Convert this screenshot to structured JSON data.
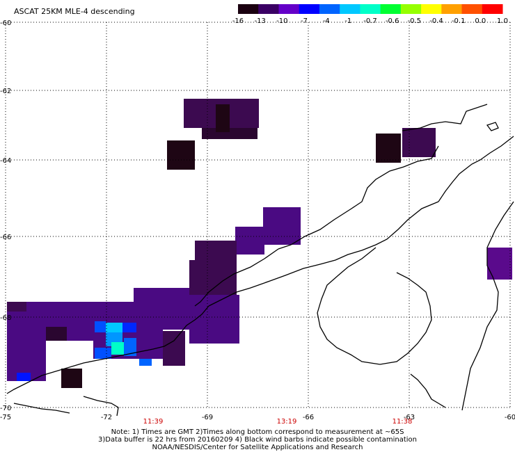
{
  "title": "ASCAT 25KM MLE-4 descending",
  "colorbar": {
    "ticks": [
      "-16",
      "-13",
      "-10",
      "-7",
      "-4",
      "-1",
      "-0.7",
      "-0.6",
      "-0.5",
      "-0.4",
      "-0.1",
      "0.0",
      "1.0"
    ],
    "colors": [
      "#1a0010",
      "#3a0064",
      "#6400c8",
      "#0000ff",
      "#0064ff",
      "#00c8ff",
      "#00ffc8",
      "#00ff32",
      "#96ff00",
      "#ffff00",
      "#ffa000",
      "#ff5000",
      "#ff0000"
    ]
  },
  "axes": {
    "lon_labels": [
      "-75",
      "-72",
      "-69",
      "-66",
      "-63",
      "-60"
    ],
    "lat_labels": [
      "-60",
      "-62",
      "-64",
      "-66",
      "-68",
      "-70"
    ]
  },
  "time_labels": [
    "11:39",
    "13:19",
    "11:38"
  ],
  "notes": {
    "line1": "Note: 1) Times are GMT 2)Times along bottom correspond to measurement at ~65S",
    "line2": "3)Data buffer is 22 hrs from 20160209 4) Black wind barbs indicate possible contamination",
    "line3": "NOAA/NESDIS/Center for Satellite Applications and Research"
  },
  "colors": {
    "deep_purple": "#3c0a50",
    "dark_plum": "#1e0614",
    "violet": "#5a0a8c",
    "indigo": "#4a0aa0",
    "blue": "#0014ff",
    "cyan": "#00c8ff",
    "teal": "#00ffc8",
    "coast": "#000000",
    "grid": "#000000",
    "time_red": "#cc0000"
  }
}
